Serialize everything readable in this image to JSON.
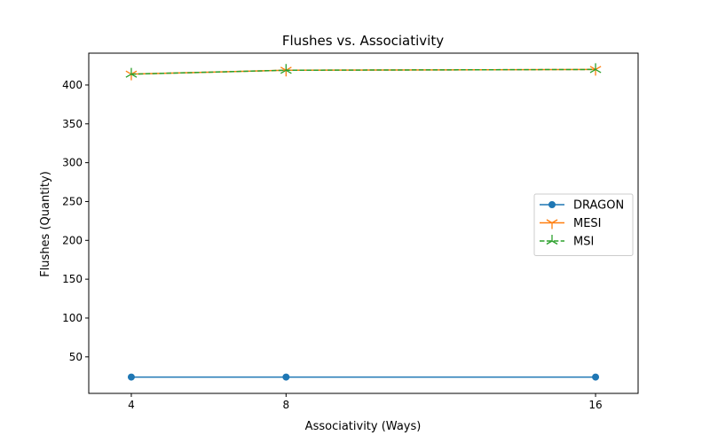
{
  "chart_data": {
    "type": "line",
    "title": "Flushes vs. Associativity",
    "xlabel": "Associativity (Ways)",
    "ylabel": "Flushes (Quantity)",
    "x": [
      4,
      8,
      16
    ],
    "xticks": [
      4,
      8,
      16
    ],
    "yticks": [
      50,
      100,
      150,
      200,
      250,
      300,
      350,
      400
    ],
    "xlim": [
      2.9,
      17.1
    ],
    "ylim": [
      3,
      441
    ],
    "grid": false,
    "legend_position": "center-right",
    "series": [
      {
        "name": "DRAGON",
        "values": [
          24,
          24,
          24
        ],
        "color": "#1f77b4",
        "marker": "circle",
        "linestyle": "solid"
      },
      {
        "name": "MESI",
        "values": [
          414,
          419,
          420
        ],
        "color": "#ff7f0e",
        "marker": "tri-down",
        "linestyle": "solid"
      },
      {
        "name": "MSI",
        "values": [
          414,
          419,
          420
        ],
        "color": "#2ca02c",
        "marker": "tri-up",
        "linestyle": "dashed"
      }
    ]
  }
}
